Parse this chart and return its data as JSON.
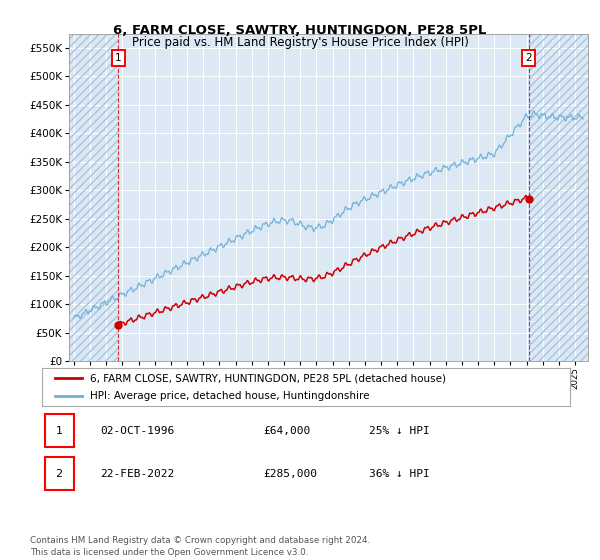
{
  "title": "6, FARM CLOSE, SAWTRY, HUNTINGDON, PE28 5PL",
  "subtitle": "Price paid vs. HM Land Registry's House Price Index (HPI)",
  "ylim": [
    0,
    575000
  ],
  "yticks": [
    0,
    50000,
    100000,
    150000,
    200000,
    250000,
    300000,
    350000,
    400000,
    450000,
    500000,
    550000
  ],
  "xlim_start": 1993.7,
  "xlim_end": 2025.8,
  "plot_bg": "#dce9f5",
  "hpi_color": "#6baed6",
  "price_color": "#cc0000",
  "transaction1_date": 1996.75,
  "transaction1_price": 64000,
  "transaction2_date": 2022.13,
  "transaction2_price": 285000,
  "legend_label1": "6, FARM CLOSE, SAWTRY, HUNTINGDON, PE28 5PL (detached house)",
  "legend_label2": "HPI: Average price, detached house, Huntingdonshire",
  "table_row1": [
    "1",
    "02-OCT-1996",
    "£64,000",
    "25% ↓ HPI"
  ],
  "table_row2": [
    "2",
    "22-FEB-2022",
    "£285,000",
    "36% ↓ HPI"
  ],
  "footer": "Contains HM Land Registry data © Crown copyright and database right 2024.\nThis data is licensed under the Open Government Licence v3.0."
}
